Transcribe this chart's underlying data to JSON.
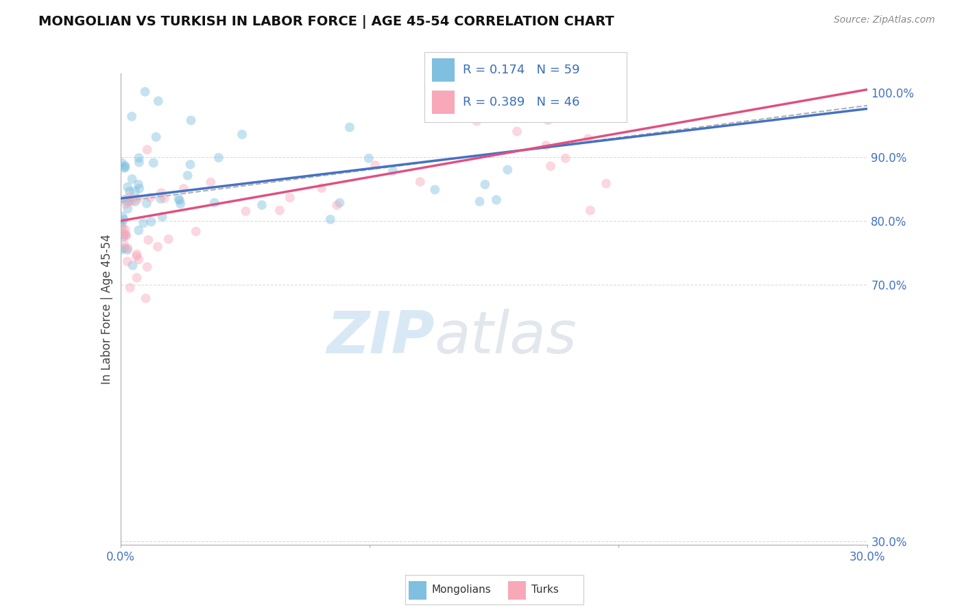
{
  "title": "MONGOLIAN VS TURKISH IN LABOR FORCE | AGE 45-54 CORRELATION CHART",
  "source": "Source: ZipAtlas.com",
  "ylabel": "In Labor Force | Age 45-54",
  "xlim": [
    0.0,
    0.3
  ],
  "ylim": [
    0.295,
    1.03
  ],
  "ytick_values": [
    0.3,
    0.7,
    0.8,
    0.9,
    1.0
  ],
  "xtick_left_label": "0.0%",
  "xtick_right_label": "30.0%",
  "mongolian_color": "#7fbfdf",
  "turkish_color": "#f8a8b8",
  "mongolian_R": 0.174,
  "mongolian_N": 59,
  "turkish_R": 0.389,
  "turkish_N": 46,
  "background_color": "#ffffff",
  "grid_color": "#cccccc",
  "scatter_size": 100,
  "scatter_alpha": 0.45,
  "line_mongolian_color": "#4472c4",
  "line_turkish_color": "#e05080",
  "line_dashed_color": "#b0b0b0",
  "watermark_zip": "ZIP",
  "watermark_atlas": "atlas",
  "legend_color": "#3a6dbd",
  "legend_box_color": "#dddddd"
}
